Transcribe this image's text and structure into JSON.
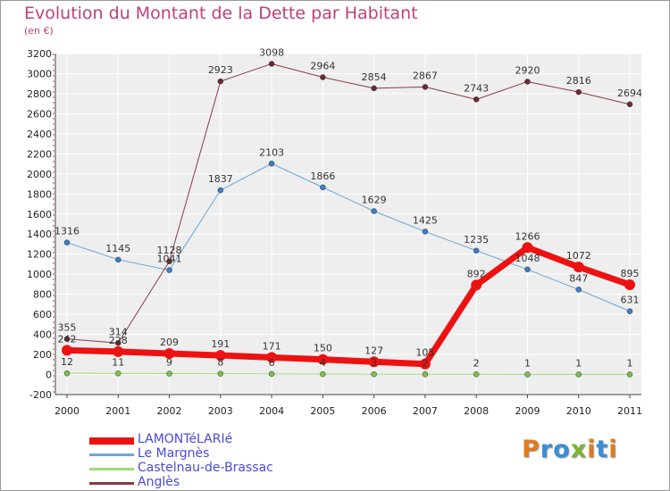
{
  "title": "Evolution du Montant de la Dette par Habitant",
  "subtitle": "(en €)",
  "logo": {
    "text": "Proxiti",
    "colors": [
      "#e07b1f",
      "#3a8ed8",
      "#3a8ed8",
      "#7ab52e",
      "#e07b1f",
      "#3a8ed8",
      "#e07b1f"
    ]
  },
  "chart_data": {
    "type": "line",
    "x": [
      "2000",
      "2001",
      "2002",
      "2003",
      "2004",
      "2005",
      "2006",
      "2007",
      "2008",
      "2009",
      "2010",
      "2011"
    ],
    "ylim": [
      -200,
      3200
    ],
    "yticks": [
      "-200",
      "0",
      "200",
      "400",
      "600",
      "800",
      "1000",
      "1200",
      "1400",
      "1600",
      "1800",
      "2000",
      "2200",
      "2400",
      "2600",
      "2800",
      "3000",
      "3200"
    ],
    "grid": true,
    "legend_position": "bottom-left",
    "series": [
      {
        "name": "LAMONTéLARIé",
        "color": "#ee1111",
        "width": 7,
        "values": [
          242,
          228,
          209,
          191,
          171,
          150,
          127,
          105,
          892,
          1266,
          1072,
          895
        ]
      },
      {
        "name": "Le Margnès",
        "color": "#6aa6d6",
        "width": 1,
        "values": [
          1316,
          1145,
          1041,
          1837,
          2103,
          1866,
          1629,
          1425,
          1235,
          1048,
          847,
          631
        ]
      },
      {
        "name": "Castelnau-de-Brassac",
        "color": "#99dd77",
        "width": 1,
        "values": [
          12,
          11,
          9,
          8,
          6,
          4,
          3,
          2,
          2,
          1,
          1,
          1
        ]
      },
      {
        "name": "Anglès",
        "color": "#8a3a42",
        "width": 1,
        "values": [
          355,
          314,
          1128,
          2923,
          3098,
          2964,
          2854,
          2867,
          2743,
          2920,
          2816,
          2694
        ]
      }
    ]
  }
}
